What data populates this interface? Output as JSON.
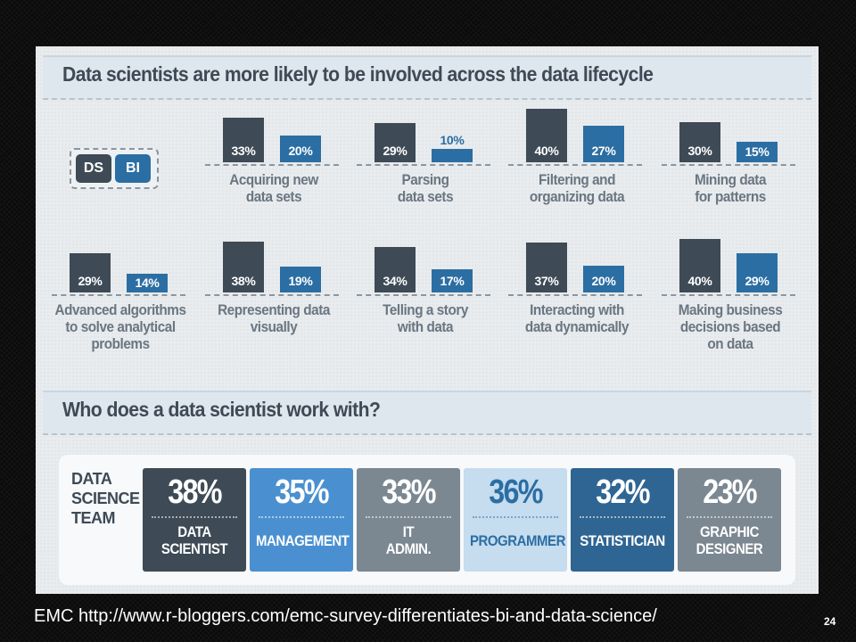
{
  "section1_title": "Data scientists are more likely to be involved across the data lifecycle",
  "section2_title": "Who does a data scientist work with?",
  "legend": {
    "ds": "DS",
    "bi": "BI"
  },
  "colors": {
    "ds": "#3e4a55",
    "bi": "#2b6ea3",
    "muted_text": "#6a7682"
  },
  "chart_data": [
    {
      "type": "bar",
      "categories": [
        "Acquiring new\ndata sets",
        "Parsing\ndata sets",
        "Filtering and\norganizing data",
        "Mining data\nfor patterns",
        "Advanced algorithms\nto solve analytical\nproblems",
        "Representing data\nvisually",
        "Telling a story\nwith data",
        "Interacting with\ndata dynamically",
        "Making business\ndecisions based\non data"
      ],
      "series": [
        {
          "name": "DS",
          "values": [
            33,
            29,
            40,
            30,
            29,
            38,
            34,
            37,
            40
          ],
          "labels": [
            "33%",
            "29%",
            "40%",
            "30%",
            "29%",
            "38%",
            "34%",
            "37%",
            "40%"
          ]
        },
        {
          "name": "BI",
          "values": [
            20,
            10,
            27,
            15,
            14,
            19,
            17,
            20,
            29
          ],
          "labels": [
            "20%",
            "10%",
            "27%",
            "15%",
            "14%",
            "19%",
            "17%",
            "20%",
            "29%"
          ]
        }
      ],
      "ylim": [
        0,
        40
      ],
      "grid": false,
      "legend": "left"
    },
    {
      "type": "table",
      "title": "DATA\nSCIENCE\nTEAM",
      "roles": [
        {
          "label": "DATA\nSCIENTIST",
          "value": 38,
          "display": "38%",
          "color": "#3e4a55"
        },
        {
          "label": "MANAGEMENT",
          "value": 35,
          "display": "35%",
          "color": "#4a90d0"
        },
        {
          "label": "IT\nADMIN.",
          "value": 33,
          "display": "33%",
          "color": "#7b8791"
        },
        {
          "label": "PROGRAMMER",
          "value": 36,
          "display": "36%",
          "color": "#c6dcef",
          "text_color": "#2b6ea3"
        },
        {
          "label": "STATISTICIAN",
          "value": 32,
          "display": "32%",
          "color": "#2f6592"
        },
        {
          "label": "GRAPHIC\nDESIGNER",
          "value": 23,
          "display": "23%",
          "color": "#7b8791"
        }
      ]
    }
  ],
  "caption": "EMC http://www.r-bloggers.com/emc-survey-differentiates-bi-and-data-science/",
  "page_number": "24"
}
